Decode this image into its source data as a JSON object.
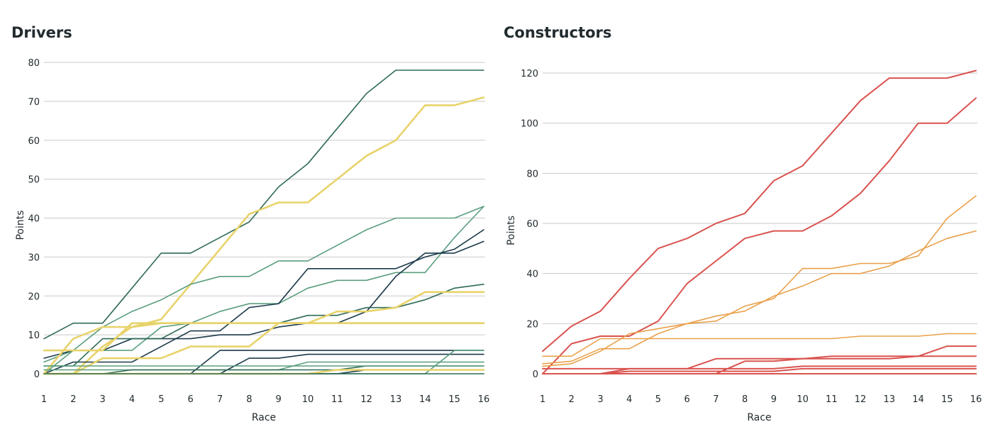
{
  "colors": {
    "drivers_dark": "#1b3a4a",
    "drivers_green": "#2f6b55",
    "drivers_lightgreen": "#5a9e7e",
    "drivers_yellow": "#e8d36b",
    "constructors_red": "#d9534f",
    "constructors_orange": "#e9a04a",
    "grid": "#c9c9c9"
  },
  "chart_data": [
    {
      "type": "line",
      "title": "Drivers",
      "xlabel": "Race",
      "ylabel": "Points",
      "x": [
        1,
        2,
        3,
        4,
        5,
        6,
        7,
        8,
        9,
        10,
        11,
        12,
        13,
        14,
        15,
        16
      ],
      "xticks": [
        "1",
        "2",
        "3",
        "4",
        "5",
        "6",
        "7",
        "8",
        "9",
        "10",
        "11",
        "12",
        "13",
        "14",
        "15",
        "16"
      ],
      "yticks": [
        "0",
        "10",
        "20",
        "30",
        "40",
        "50",
        "60",
        "70",
        "80"
      ],
      "ylim": [
        0,
        80
      ],
      "grid": true,
      "series": [
        {
          "color": "#2f6b55",
          "width": 1.6,
          "values": [
            9,
            13,
            13,
            22,
            31,
            31,
            35,
            39,
            48,
            54,
            63,
            72,
            78,
            78,
            78,
            78
          ]
        },
        {
          "color": "#e8d36b",
          "width": 2.6,
          "values": [
            0,
            0,
            7,
            12,
            14,
            23,
            32,
            41,
            44,
            44,
            50,
            56,
            60,
            69,
            69,
            71
          ]
        },
        {
          "color": "#5a9e7e",
          "width": 1.6,
          "values": [
            0,
            6,
            12,
            16,
            19,
            23,
            25,
            25,
            29,
            29,
            33,
            37,
            40,
            40,
            40,
            43
          ]
        },
        {
          "color": "#5a9e7e",
          "width": 1.6,
          "values": [
            3,
            6,
            6,
            6,
            12,
            13,
            16,
            18,
            18,
            22,
            24,
            24,
            26,
            26,
            35,
            43
          ]
        },
        {
          "color": "#1b3a4a",
          "width": 1.6,
          "values": [
            0,
            3,
            3,
            3,
            7,
            11,
            11,
            17,
            18,
            27,
            27,
            27,
            27,
            30,
            32,
            37
          ]
        },
        {
          "color": "#1b3a4a",
          "width": 1.6,
          "values": [
            4,
            6,
            6,
            9,
            9,
            9,
            10,
            10,
            12,
            13,
            13,
            16,
            25,
            31,
            31,
            34
          ]
        },
        {
          "color": "#2f6b55",
          "width": 1.6,
          "values": [
            2,
            2,
            9,
            9,
            9,
            13,
            13,
            13,
            13,
            15,
            15,
            17,
            17,
            19,
            22,
            23
          ]
        },
        {
          "color": "#e8d36b",
          "width": 2.6,
          "values": [
            6,
            6,
            6,
            13,
            13,
            13,
            13,
            13,
            13,
            13,
            16,
            16,
            17,
            21,
            21,
            21
          ]
        },
        {
          "color": "#e8d36b",
          "width": 2.6,
          "values": [
            0,
            9,
            12,
            12,
            13,
            13,
            13,
            13,
            13,
            13,
            13,
            13,
            13,
            13,
            13,
            13
          ]
        },
        {
          "color": "#e8d36b",
          "width": 2.6,
          "values": [
            0,
            0,
            4,
            4,
            4,
            7,
            7,
            7,
            13,
            13,
            13,
            13,
            13,
            13,
            13,
            13
          ]
        },
        {
          "color": "#1b3a4a",
          "width": 1.6,
          "values": [
            0,
            0,
            0,
            0,
            0,
            0,
            6,
            6,
            6,
            6,
            6,
            6,
            6,
            6,
            6,
            6
          ]
        },
        {
          "color": "#1b3a4a",
          "width": 1.6,
          "values": [
            0,
            0,
            0,
            0,
            0,
            0,
            0,
            4,
            4,
            5,
            5,
            5,
            5,
            5,
            5,
            5
          ]
        },
        {
          "color": "#5a9e7e",
          "width": 1.6,
          "values": [
            0,
            0,
            0,
            0,
            0,
            0,
            0,
            0,
            0,
            0,
            0,
            0,
            0,
            0,
            6,
            6
          ]
        },
        {
          "color": "#5a9e7e",
          "width": 1.6,
          "values": [
            1,
            1,
            1,
            1,
            1,
            1,
            1,
            1,
            1,
            3,
            3,
            3,
            3,
            3,
            3,
            3
          ]
        },
        {
          "color": "#2f6b55",
          "width": 1.6,
          "values": [
            0,
            0,
            0,
            1,
            1,
            1,
            1,
            1,
            1,
            1,
            1,
            2,
            2,
            2,
            2,
            2
          ]
        },
        {
          "color": "#1b3a4a",
          "width": 1.6,
          "values": [
            0,
            0,
            0,
            0,
            0,
            0,
            0,
            0,
            0,
            0,
            0,
            1,
            1,
            1,
            1,
            1
          ]
        },
        {
          "color": "#e8d36b",
          "width": 2.6,
          "values": [
            0,
            0,
            0,
            0,
            0,
            0,
            0,
            0,
            0,
            0,
            1,
            1,
            1,
            1,
            1,
            1
          ]
        },
        {
          "color": "#5a9e7e",
          "width": 1.6,
          "values": [
            2,
            2,
            2,
            2,
            2,
            2,
            2,
            2,
            2,
            2,
            2,
            2,
            2,
            2,
            2,
            2
          ]
        },
        {
          "color": "#2f6b55",
          "width": 1.6,
          "values": [
            0,
            0,
            0,
            0,
            0,
            0,
            0,
            0,
            0,
            0,
            0,
            0,
            0,
            0,
            0,
            0
          ]
        }
      ]
    },
    {
      "type": "line",
      "title": "Constructors",
      "xlabel": "Race",
      "ylabel": "Points",
      "x": [
        1,
        2,
        3,
        4,
        5,
        6,
        7,
        8,
        9,
        10,
        11,
        12,
        13,
        14,
        15,
        16
      ],
      "xticks": [
        "1",
        "2",
        "3",
        "4",
        "5",
        "6",
        "7",
        "8",
        "9",
        "10",
        "11",
        "12",
        "13",
        "14",
        "15",
        "16"
      ],
      "yticks": [
        "0",
        "20",
        "40",
        "60",
        "80",
        "100",
        "120"
      ],
      "ylim": [
        0,
        124
      ],
      "grid": true,
      "series": [
        {
          "color": "#d9534f",
          "width": 2.0,
          "values": [
            9,
            19,
            25,
            38,
            50,
            54,
            60,
            64,
            77,
            83,
            96,
            109,
            118,
            118,
            118,
            121
          ]
        },
        {
          "color": "#d9534f",
          "width": 2.0,
          "values": [
            0,
            12,
            15,
            15,
            21,
            36,
            45,
            54,
            57,
            57,
            63,
            72,
            85,
            100,
            100,
            110
          ]
        },
        {
          "color": "#e9a04a",
          "width": 1.6,
          "values": [
            4,
            5,
            10,
            10,
            16,
            20,
            21,
            27,
            30,
            42,
            42,
            44,
            44,
            47,
            62,
            71
          ]
        },
        {
          "color": "#e9a04a",
          "width": 1.6,
          "values": [
            3,
            4,
            9,
            16,
            18,
            20,
            23,
            25,
            31,
            35,
            40,
            40,
            43,
            49,
            54,
            57
          ]
        },
        {
          "color": "#e9a04a",
          "width": 1.6,
          "values": [
            7,
            7,
            14,
            14,
            14,
            14,
            14,
            14,
            14,
            14,
            14,
            15,
            15,
            15,
            16,
            16
          ]
        },
        {
          "color": "#d9534f",
          "width": 2.0,
          "values": [
            0,
            0,
            0,
            2,
            2,
            2,
            6,
            6,
            6,
            6,
            7,
            7,
            7,
            7,
            11,
            11
          ]
        },
        {
          "color": "#d9534f",
          "width": 2.0,
          "values": [
            0,
            0,
            0,
            0,
            0,
            0,
            0,
            5,
            5,
            6,
            6,
            6,
            6,
            7,
            7,
            7
          ]
        },
        {
          "color": "#d9534f",
          "width": 2.0,
          "values": [
            2,
            2,
            2,
            2,
            2,
            2,
            2,
            2,
            2,
            3,
            3,
            3,
            3,
            3,
            3,
            3
          ]
        },
        {
          "color": "#d9534f",
          "width": 2.0,
          "values": [
            0,
            0,
            0,
            1,
            1,
            1,
            1,
            1,
            1,
            2,
            2,
            2,
            2,
            2,
            2,
            2
          ]
        },
        {
          "color": "#d9534f",
          "width": 2.0,
          "values": [
            0,
            0,
            0,
            0,
            0,
            0,
            0,
            0,
            0,
            0,
            0,
            0,
            0,
            0,
            0,
            0
          ]
        }
      ]
    }
  ]
}
